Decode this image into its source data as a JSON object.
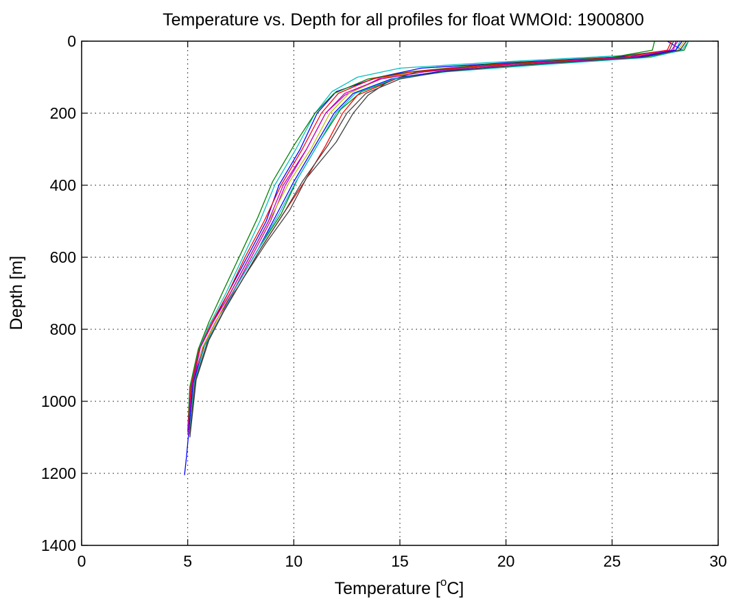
{
  "chart_data": {
    "type": "line",
    "title": "Temperature vs. Depth for all profiles for float WMOId: 1900800",
    "xlabel": "Temperature [",
    "xlabel_superscript": "o",
    "xlabel_suffix": "C]",
    "ylabel": "Depth [m]",
    "xlim": [
      0,
      30
    ],
    "ylim": [
      1400,
      0
    ],
    "y_reversed": true,
    "xticks": [
      0,
      5,
      10,
      15,
      20,
      25,
      30
    ],
    "yticks": [
      0,
      200,
      400,
      600,
      800,
      1000,
      1200,
      1400
    ],
    "xtick_labels": [
      "0",
      "5",
      "10",
      "15",
      "20",
      "25",
      "30"
    ],
    "ytick_labels": [
      "0",
      "200",
      "400",
      "600",
      "800",
      "1000",
      "1200",
      "1400"
    ],
    "grid": true,
    "legend": "none",
    "series": [
      {
        "color": "#0000ff",
        "x": [
          27.6,
          28.3,
          26.5,
          20.0,
          16.0,
          14.0,
          12.0,
          11.1,
          10.3,
          9.3,
          8.7,
          7.8,
          6.9,
          6.2,
          5.6,
          5.2,
          5.1,
          4.95,
          4.85
        ],
        "y": [
          0,
          25,
          40,
          60,
          75,
          100,
          140,
          200,
          300,
          400,
          500,
          600,
          700,
          780,
          850,
          950,
          1050,
          1150,
          1205
        ]
      },
      {
        "color": "#008000",
        "x": [
          28.6,
          28.4,
          26.5,
          21.5,
          17.5,
          15.0,
          13.2,
          12.2,
          11.2,
          10.2,
          9.4,
          8.3,
          7.3,
          6.5,
          5.8,
          5.3,
          5.1
        ],
        "y": [
          0,
          25,
          45,
          65,
          80,
          100,
          140,
          190,
          280,
          380,
          480,
          580,
          680,
          760,
          840,
          950,
          1100
        ]
      },
      {
        "color": "#ff0000",
        "x": [
          28.5,
          28.2,
          26.0,
          20.5,
          17.0,
          14.8,
          13.0,
          12.3,
          11.5,
          10.5,
          9.5,
          8.4,
          7.4,
          6.5,
          5.8,
          5.3,
          5.1
        ],
        "y": [
          0,
          25,
          45,
          65,
          85,
          105,
          150,
          200,
          290,
          390,
          480,
          580,
          680,
          760,
          840,
          930,
          1090
        ]
      },
      {
        "color": "#00bfbf",
        "x": [
          28.2,
          28.0,
          25.5,
          19.0,
          15.0,
          13.0,
          11.8,
          11.0,
          10.1,
          9.1,
          8.4,
          7.6,
          6.8,
          6.0,
          5.5,
          5.1,
          5.0
        ],
        "y": [
          0,
          25,
          40,
          60,
          75,
          100,
          140,
          200,
          300,
          400,
          500,
          600,
          700,
          790,
          860,
          960,
          1090
        ]
      },
      {
        "color": "#bf00bf",
        "x": [
          28.0,
          27.9,
          25.8,
          20.0,
          16.0,
          14.0,
          12.4,
          11.5,
          10.6,
          9.6,
          8.9,
          8.0,
          7.1,
          6.3,
          5.7,
          5.2,
          5.05
        ],
        "y": [
          0,
          25,
          45,
          65,
          85,
          105,
          150,
          200,
          300,
          400,
          500,
          600,
          700,
          780,
          850,
          960,
          1095
        ]
      },
      {
        "color": "#bfbf00",
        "x": [
          28.4,
          28.1,
          26.2,
          20.5,
          16.5,
          14.3,
          12.6,
          11.7,
          10.8,
          9.8,
          9.0,
          8.1,
          7.2,
          6.4,
          5.7,
          5.2
        ],
        "y": [
          0,
          25,
          45,
          65,
          80,
          100,
          145,
          200,
          300,
          390,
          480,
          580,
          680,
          770,
          850,
          980
        ]
      },
      {
        "color": "#404040",
        "x": [
          27.9,
          27.7,
          25.0,
          19.5,
          15.8,
          14.5,
          13.5,
          12.8,
          12.0,
          10.6,
          9.8,
          8.7,
          7.6,
          6.7,
          6.0,
          5.4,
          5.1
        ],
        "y": [
          0,
          25,
          45,
          65,
          85,
          110,
          150,
          200,
          280,
          380,
          470,
          560,
          660,
          750,
          830,
          940,
          1100
        ]
      },
      {
        "color": "#0000ff",
        "x": [
          28.3,
          28.0,
          26.2,
          21.0,
          16.8,
          14.6,
          12.8,
          11.9,
          11.0,
          10.0,
          9.2,
          8.3,
          7.3,
          6.5,
          5.8,
          5.25,
          5.05
        ],
        "y": [
          0,
          25,
          45,
          65,
          85,
          105,
          145,
          200,
          290,
          390,
          480,
          580,
          680,
          770,
          845,
          950,
          1080
        ]
      },
      {
        "color": "#008000",
        "x": [
          27.0,
          26.9,
          25.0,
          19.0,
          15.5,
          13.5,
          11.9,
          11.0,
          10.0,
          9.0,
          8.3,
          7.5,
          6.7,
          6.0,
          5.5,
          5.1,
          5.0
        ],
        "y": [
          0,
          25,
          45,
          65,
          85,
          105,
          145,
          200,
          290,
          390,
          490,
          590,
          690,
          780,
          855,
          960,
          1080
        ]
      },
      {
        "color": "#ff0000",
        "x": [
          27.8,
          27.6,
          25.5,
          19.5,
          15.6,
          13.7,
          12.1,
          11.3,
          10.4,
          9.4,
          8.6,
          7.7,
          6.9,
          6.1,
          5.55,
          5.15,
          5.0
        ],
        "y": [
          0,
          25,
          45,
          65,
          85,
          105,
          145,
          200,
          300,
          400,
          500,
          600,
          700,
          785,
          855,
          960,
          1085
        ]
      },
      {
        "color": "#00bfbf",
        "x": [
          28.6,
          28.3,
          26.8,
          21.8,
          17.2,
          14.7,
          12.9,
          12.0,
          11.1,
          10.1,
          9.3,
          8.3,
          7.3,
          6.5,
          5.8,
          5.3,
          5.1
        ],
        "y": [
          0,
          25,
          45,
          65,
          85,
          105,
          145,
          200,
          290,
          390,
          480,
          580,
          680,
          770,
          845,
          950,
          1080
        ]
      },
      {
        "color": "#bf00bf",
        "x": [
          28.1,
          27.8,
          25.9,
          20.2,
          16.2,
          14.1,
          12.4,
          11.5,
          10.6,
          9.5,
          8.8,
          7.9,
          7.0,
          6.2,
          5.6,
          5.2,
          5.0
        ],
        "y": [
          0,
          25,
          45,
          65,
          85,
          105,
          145,
          200,
          300,
          400,
          500,
          600,
          700,
          780,
          850,
          960,
          1085
        ]
      },
      {
        "color": "#404040",
        "x": [
          28.5,
          28.2,
          26.4,
          21.0,
          17.0,
          15.0,
          13.4,
          12.5,
          11.6,
          10.4,
          9.6,
          8.5,
          7.5,
          6.6,
          5.9,
          5.35,
          5.1
        ],
        "y": [
          0,
          25,
          45,
          65,
          85,
          105,
          145,
          200,
          290,
          390,
          470,
          570,
          670,
          760,
          840,
          945,
          1090
        ]
      }
    ]
  }
}
